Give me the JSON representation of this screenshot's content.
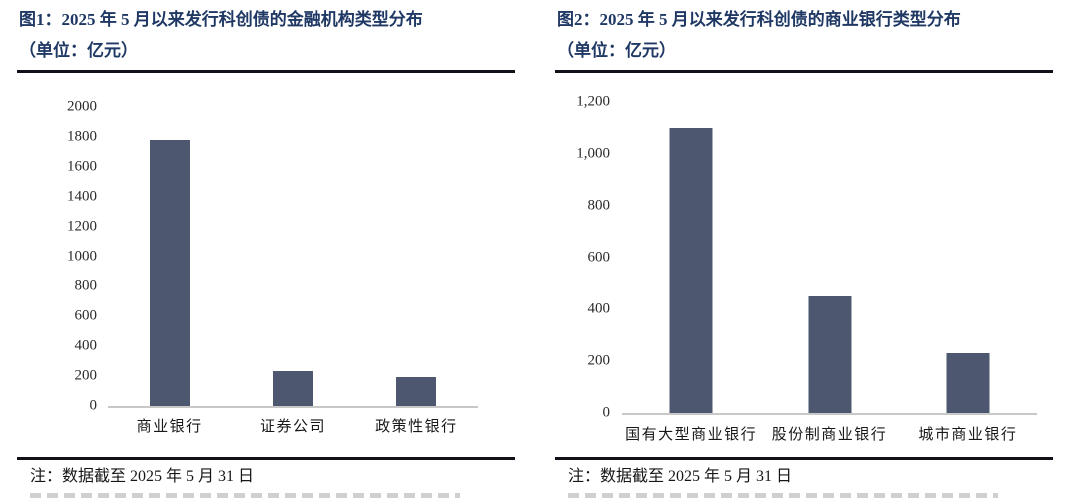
{
  "page": {
    "background": "#ffffff",
    "language": "zh-CN"
  },
  "colors": {
    "title_text": "#1f3864",
    "bar_fill": "#4d5770",
    "axis_line": "#c8c8c8",
    "divider_rule": "#111119",
    "body_text": "#161616"
  },
  "chart_data": [
    {
      "type": "bar",
      "title": "图1：2025 年 5 月以来发行科创债的金融机构类型分布",
      "subtitle": "（单位：亿元）",
      "categories": [
        "商业银行",
        "证券公司",
        "政策性银行"
      ],
      "values": [
        1780,
        235,
        195
      ],
      "xlabel": "",
      "ylabel": "",
      "ylim": [
        0,
        2000
      ],
      "ytick_step": 200,
      "ytick_labels": [
        "0",
        "200",
        "400",
        "600",
        "800",
        "1000",
        "1200",
        "1400",
        "1600",
        "1800",
        "2000"
      ],
      "grid": false,
      "legend": "none",
      "bar_color": "#4d5770",
      "note": "注：数据截至 2025 年 5 月 31 日"
    },
    {
      "type": "bar",
      "title": "图2：2025 年 5 月以来发行科创债的商业银行类型分布",
      "subtitle": "（单位：亿元）",
      "categories": [
        "国有大型商业银行",
        "股份制商业银行",
        "城市商业银行"
      ],
      "values": [
        1100,
        450,
        230
      ],
      "xlabel": "",
      "ylabel": "",
      "ylim": [
        0,
        1200
      ],
      "ytick_step": 200,
      "ytick_labels": [
        "0",
        "200",
        "400",
        "600",
        "800",
        "1,000",
        "1,200"
      ],
      "grid": false,
      "legend": "none",
      "bar_color": "#4d5770",
      "note": "注：数据截至 2025 年 5 月 31 日"
    }
  ]
}
